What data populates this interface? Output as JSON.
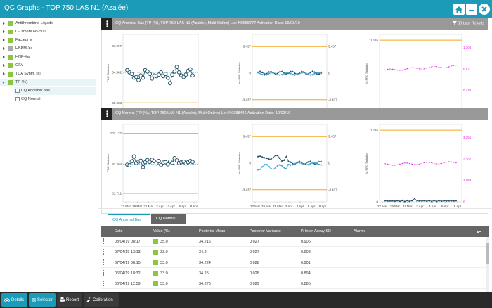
{
  "app": {
    "title": "QC Graphs - TOP 750 LAS N1 (Azalée)"
  },
  "colors": {
    "brand": "#1b9bb8",
    "limit_line": "#f5a623",
    "series_dark": "#234f63",
    "series_light": "#45a4d4",
    "pink": "#e020e0",
    "reagent_green": "#8cc63f"
  },
  "titlebar_icons": [
    "home-icon",
    "minimize-icon",
    "close-icon"
  ],
  "sidebar": {
    "items": [
      {
        "label": "Antithrombine Liquide"
      },
      {
        "label": "D-Dimere HS 500"
      },
      {
        "label": "Facteur V"
      },
      {
        "label": "HBPM-Xa"
      },
      {
        "label": "HNF-Xa"
      },
      {
        "label": "OFA"
      },
      {
        "label": "TCA Synth. (s)"
      },
      {
        "label": "TP (%)"
      }
    ],
    "children": [
      {
        "label": "CQ Anormal Bas"
      },
      {
        "label": "CQ Normal"
      }
    ]
  },
  "panels": [
    {
      "title": "CQ Anormal Bas (TP (%), TOP 750 LAS N1 (Azalée), Multi Online) Lot: N0688777 Activation Date: 19/03/19",
      "filter_label": "30 Last Results",
      "charts": {
        "pqc": {
          "ylabel": "PQC Statistics",
          "ticks": [
            "37.997",
            "34.582",
            "30.658"
          ],
          "series": [
            34.9,
            34.6,
            34.4,
            33.9,
            34.0,
            33.6,
            34.2,
            33.9,
            34.9,
            34.7,
            34.4,
            33.8,
            34.2,
            34.1,
            34.3,
            34.6,
            34.1,
            34.4,
            33.9,
            33.2,
            34.3,
            34.7,
            35.3,
            34.6,
            34.2,
            34.0,
            34.3,
            34.8,
            35.0,
            34.2
          ]
        },
        "inv": {
          "ylabel": "Inv PRC Statistics",
          "ticks": [
            "3.437",
            "0",
            "-3.437"
          ],
          "right_ticks": [
            "3.437",
            "0",
            "-3.437"
          ]
        },
        "vi": {
          "ylabel": "Vi PRC Statistics",
          "ticks": [
            "11.116",
            "0"
          ],
          "right_ticks": [
            "1.305",
            "0.87",
            "0.435",
            "0"
          ]
        }
      }
    },
    {
      "title": "CQ Normal (TP (%), TOP 750 LAS N1 (Azalée), Multi Online) Lot: N0688446 Activation Date: 19/03/19",
      "charts": {
        "pqc": {
          "ylabel": "PQC Statistics",
          "ticks": [
            "101.132",
            "91.204",
            "81.721"
          ],
          "series": [
            91.0,
            90.8,
            92.1,
            93.7,
            91.5,
            92.0,
            92.3,
            90.2,
            91.8,
            92.5,
            91.9,
            92.6,
            92.1,
            91.4,
            92.2,
            90.9,
            91.7,
            91.8,
            91.1,
            92.0,
            91.6,
            93.1,
            92.4,
            91.5,
            91.8,
            92.0,
            91.4,
            91.8,
            92.2,
            91.9
          ]
        },
        "inv": {
          "ylabel": "Inv PRC Statistics",
          "ticks": [
            "3.437",
            "0",
            "-3.437"
          ],
          "right_ticks": [
            "3.437",
            "0",
            "-3.437"
          ]
        },
        "vi": {
          "ylabel": "Vi PRC Statistics",
          "ticks": [
            "11.116",
            "0"
          ],
          "right_ticks": [
            "3.251",
            "2.167",
            "1.084",
            "0"
          ]
        }
      }
    }
  ],
  "x_ticks": [
    "27 Mar",
    "29 Mar",
    "31 Mar",
    "2 Apr",
    "4 Apr",
    "6 Apr",
    "8 Apr"
  ],
  "tabs": [
    {
      "label": "CQ Anormal Bas"
    },
    {
      "label": "CQ Normal"
    }
  ],
  "grid": {
    "columns": [
      "Date",
      "Value (%)",
      "Posterior Mean",
      "Posterior Variance",
      "P. Inter-Assay SD",
      "Alarms"
    ],
    "rows": [
      {
        "date": "08/04/19 08:17",
        "value": "35.0",
        "mean": "34.216",
        "variance": "0.027",
        "sd": "0.906"
      },
      {
        "date": "07/04/19 13:13",
        "value": "33.0",
        "mean": "34.2",
        "variance": "0.027",
        "sd": "0.908"
      },
      {
        "date": "07/04/19 08:15",
        "value": "33.0",
        "mean": "34.224",
        "variance": "0.028",
        "sd": "0.901"
      },
      {
        "date": "06/04/19 18:32",
        "value": "33.0",
        "mean": "34.25",
        "variance": "0.028",
        "sd": "0.894"
      },
      {
        "date": "06/04/19 12:59",
        "value": "33.0",
        "mean": "34.276",
        "variance": "0.029",
        "sd": "0.885"
      }
    ]
  },
  "bottombar": [
    {
      "label": "Details",
      "icon": "eye-icon"
    },
    {
      "label": "Selector",
      "icon": "list-icon"
    },
    {
      "label": "Report",
      "icon": "print-icon"
    },
    {
      "label": "Calibration",
      "icon": "wrench-icon"
    }
  ]
}
